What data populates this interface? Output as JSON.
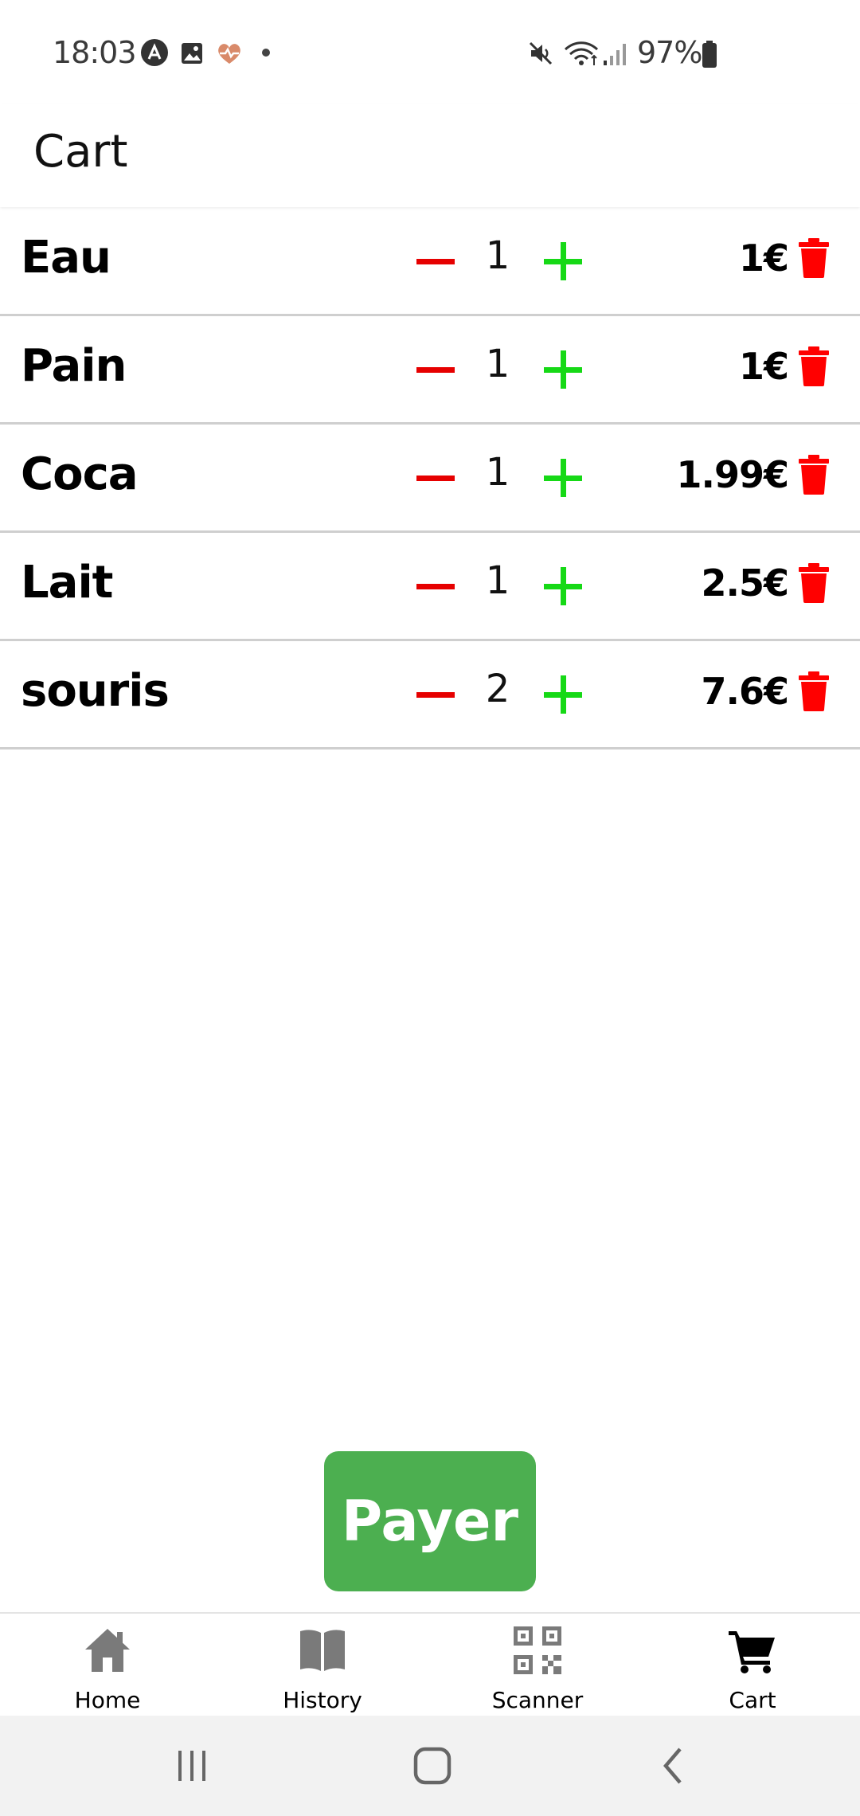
{
  "status_bar": {
    "time": "18:03",
    "battery": "97%",
    "icons": [
      "app-notification-icon",
      "gallery-icon",
      "health-icon",
      "dot-icon",
      "mute-icon",
      "wifi-icon",
      "signal-icon",
      "battery-icon"
    ]
  },
  "header": {
    "title": "Cart"
  },
  "cart": {
    "items": [
      {
        "name": "Eau",
        "quantity": "1",
        "price": "1€"
      },
      {
        "name": "Pain",
        "quantity": "1",
        "price": "1€"
      },
      {
        "name": "Coca",
        "quantity": "1",
        "price": "1.99€"
      },
      {
        "name": "Lait",
        "quantity": "1",
        "price": "2.5€"
      },
      {
        "name": "souris",
        "quantity": "2",
        "price": "7.6€"
      }
    ]
  },
  "pay_button": {
    "label": "Payer"
  },
  "tabs": [
    {
      "label": "Home",
      "icon": "home-icon",
      "active": false
    },
    {
      "label": "History",
      "icon": "book-icon",
      "active": false
    },
    {
      "label": "Scanner",
      "icon": "qr-code-icon",
      "active": false
    },
    {
      "label": "Cart",
      "icon": "cart-icon",
      "active": true
    }
  ],
  "colors": {
    "decrement": "#e60000",
    "increment": "#16d916",
    "delete": "#ff0000",
    "pay": "#4caf50",
    "tab_inactive": "#7a7a7a",
    "tab_active": "#000000"
  },
  "system_nav": {
    "buttons": [
      "recent-apps-icon",
      "home-nav-icon",
      "back-icon"
    ]
  }
}
